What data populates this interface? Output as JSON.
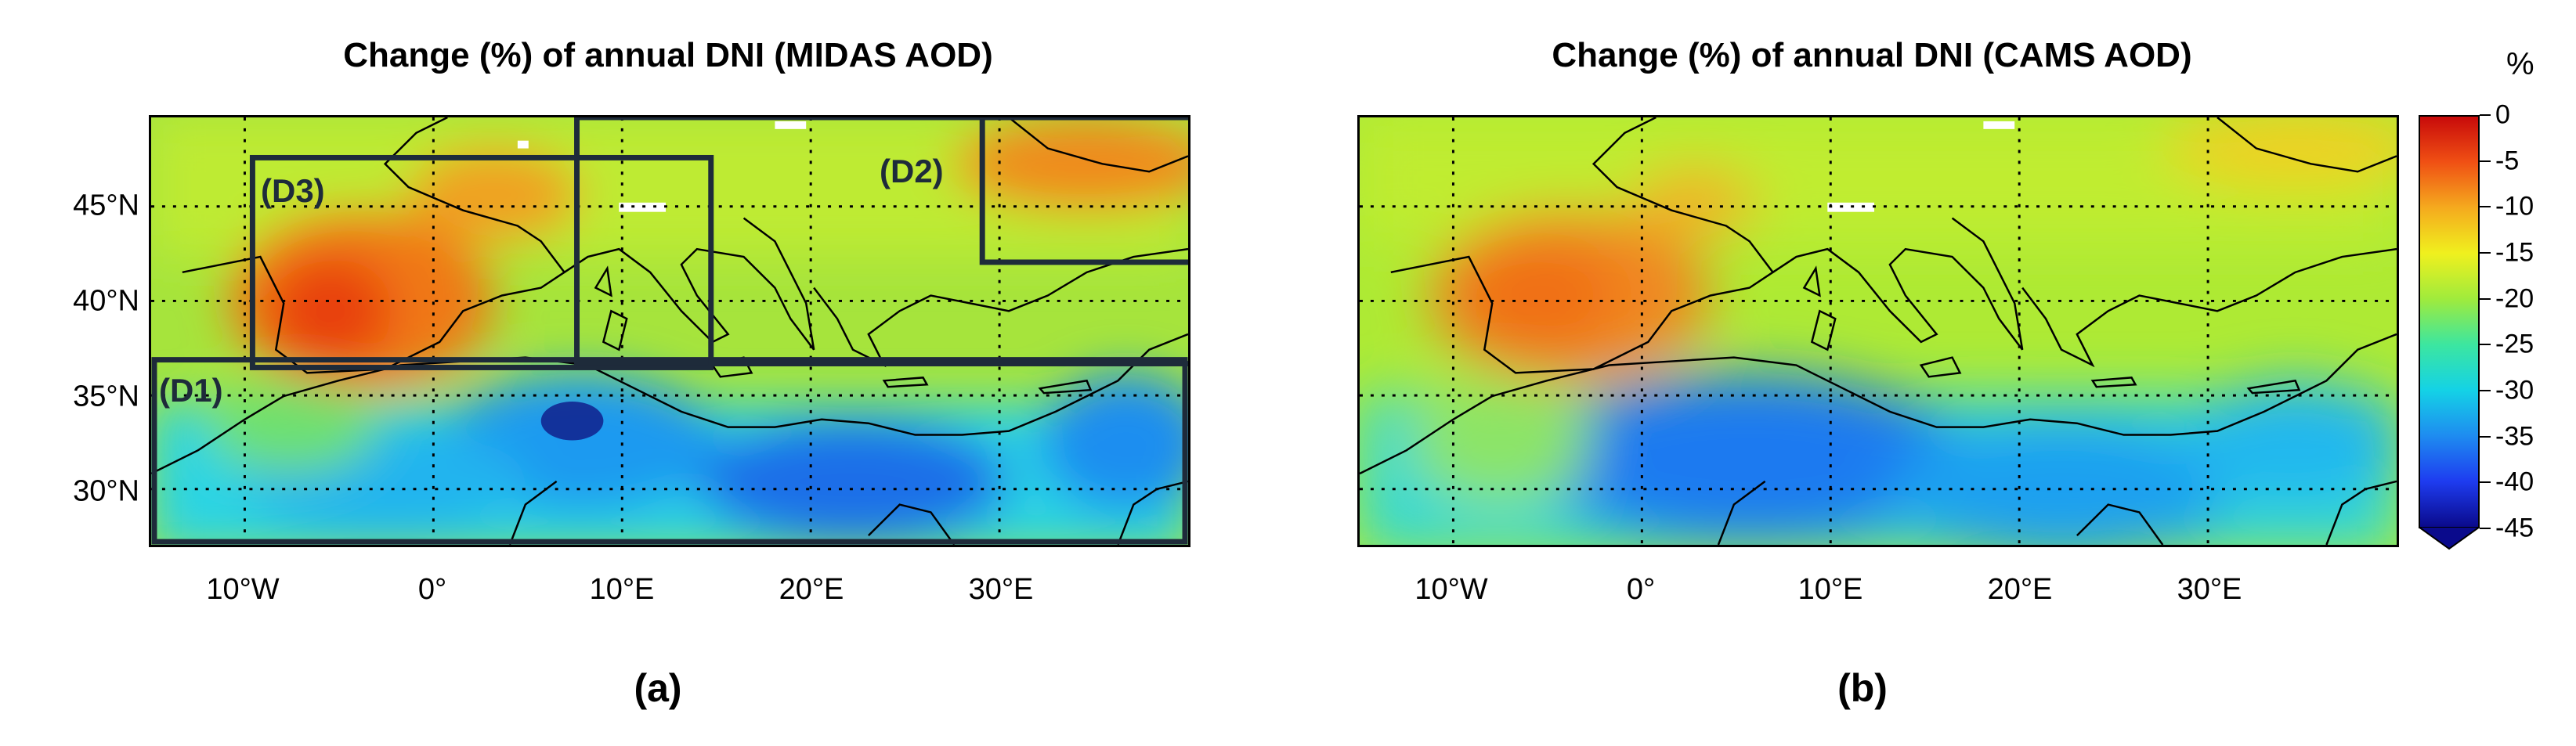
{
  "panel_a": {
    "title": "Change (%) of annual DNI (MIDAS AOD)",
    "label": "(a)",
    "regions": [
      {
        "name": "(D1)"
      },
      {
        "name": "(D2)"
      },
      {
        "name": "(D3)"
      }
    ]
  },
  "panel_b": {
    "title": "Change (%) of annual DNI (CAMS AOD)",
    "label": "(b)"
  },
  "axes": {
    "y_ticks": [
      "45°N",
      "40°N",
      "35°N",
      "30°N"
    ],
    "x_ticks": [
      "10°W",
      "0°",
      "10°E",
      "20°E",
      "30°E"
    ],
    "lat_range": [
      27,
      49.5
    ],
    "lon_range": [
      -15,
      40
    ]
  },
  "colorbar": {
    "unit": "%",
    "ticks": [
      "0",
      "-5",
      "-10",
      "-15",
      "-20",
      "-25",
      "-30",
      "-35",
      "-40",
      "-45"
    ],
    "range": [
      -45,
      0
    ],
    "colors": [
      "#0a0a8c",
      "#1e3cf0",
      "#1e8cf0",
      "#14d2e6",
      "#3ce6a0",
      "#a0eb3c",
      "#f0f01e",
      "#f5aa1e",
      "#f05014",
      "#c80a0a"
    ]
  }
}
